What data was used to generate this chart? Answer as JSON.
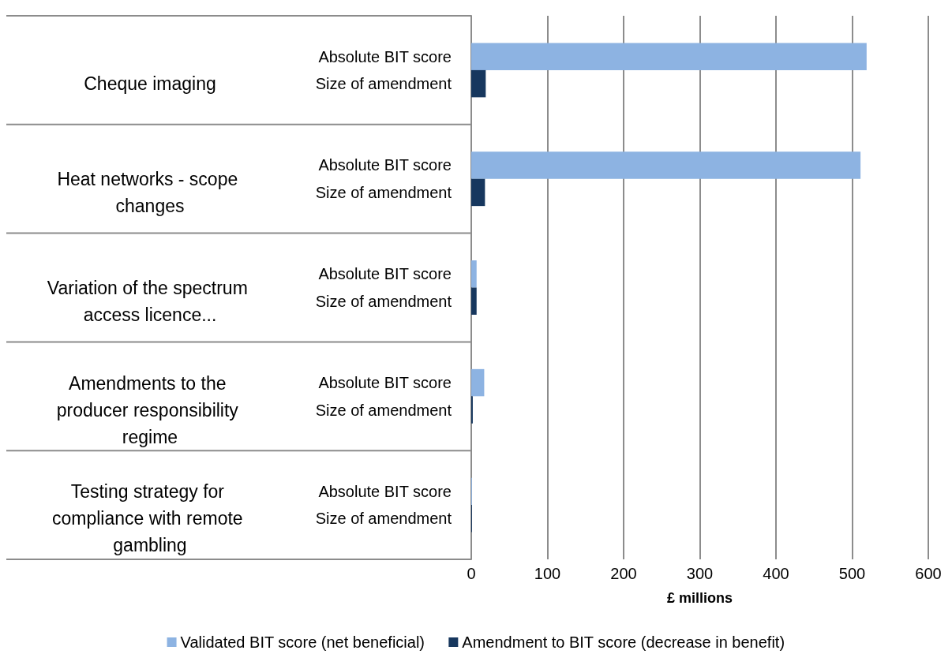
{
  "chart_data": {
    "type": "bar",
    "orientation": "horizontal",
    "xlabel": "£ millions",
    "categories": [
      null,
      "Absolute BIT score",
      "Size of amendment",
      null,
      null,
      "Absolute BIT score",
      "Size of amendment",
      null,
      null,
      "Absolute BIT score",
      "Size of amendment",
      null,
      null,
      "Absolute BIT score",
      "Size of amendment",
      null,
      null,
      "Absolute BIT score",
      "Size of amendment",
      null
    ],
    "series": [
      {
        "name": "Validated BIT score (net beneficial)",
        "color": "#8db3e2",
        "values": [
          null,
          519,
          null,
          null,
          null,
          511,
          null,
          null,
          null,
          7,
          null,
          null,
          null,
          17,
          null,
          null,
          null,
          1,
          null,
          null
        ]
      },
      {
        "name": "Amendment to BIT score (decrease in benefit)",
        "color": "#17375e",
        "values": [
          null,
          null,
          19,
          null,
          null,
          null,
          18,
          null,
          null,
          null,
          7,
          null,
          null,
          null,
          2,
          null,
          null,
          null,
          1,
          null
        ]
      }
    ],
    "annotations": [
      "Cheque imaging",
      "Heat networks - scope changes",
      "Variation of the spectrum access licence...",
      "Amendments to the producer responsibility regime",
      "Testing strategy for compliance with remote gambling"
    ],
    "xlim": [
      0,
      600
    ],
    "xticks": [
      0,
      100,
      200,
      300,
      400,
      500,
      600
    ],
    "grid": "x",
    "legend": "bottom"
  }
}
